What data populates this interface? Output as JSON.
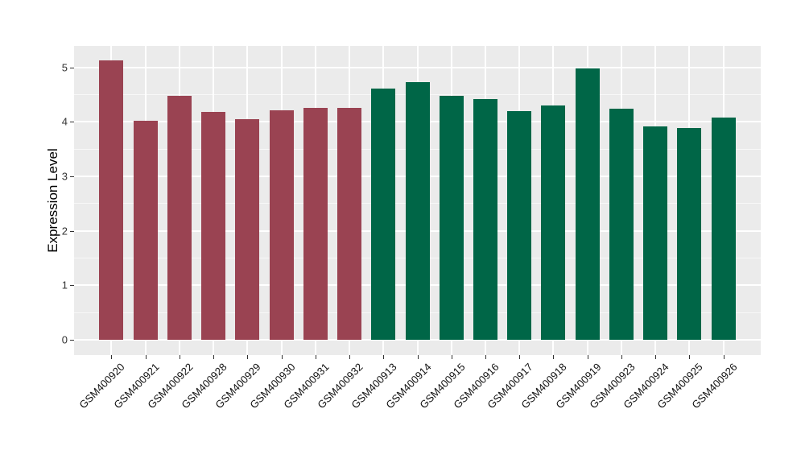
{
  "chart_data": {
    "type": "bar",
    "title": "",
    "xlabel": "",
    "ylabel": "Expression Level",
    "categories": [
      "GSM400920",
      "GSM400921",
      "GSM400922",
      "GSM400928",
      "GSM400929",
      "GSM400930",
      "GSM400931",
      "GSM400932",
      "GSM400913",
      "GSM400914",
      "GSM400915",
      "GSM400916",
      "GSM400917",
      "GSM400918",
      "GSM400919",
      "GSM400923",
      "GSM400924",
      "GSM400925",
      "GSM400926"
    ],
    "values": [
      5.13,
      4.02,
      4.48,
      4.18,
      4.05,
      4.21,
      4.25,
      4.26,
      4.61,
      4.72,
      4.48,
      4.42,
      4.2,
      4.3,
      4.98,
      4.24,
      3.92,
      3.89,
      4.07
    ],
    "groups": [
      "red",
      "red",
      "red",
      "red",
      "red",
      "red",
      "red",
      "red",
      "green",
      "green",
      "green",
      "green",
      "green",
      "green",
      "green",
      "green",
      "green",
      "green",
      "green"
    ],
    "group_colors": {
      "red": "#9a4352",
      "green": "#006647"
    },
    "yticks": [
      "0",
      "1",
      "2",
      "3",
      "4",
      "5"
    ],
    "ylim": [
      0,
      5.4
    ],
    "grid": "major-and-minor",
    "legend": "none",
    "panel_bg": "#ebebeb",
    "grid_color": "#ffffff"
  }
}
